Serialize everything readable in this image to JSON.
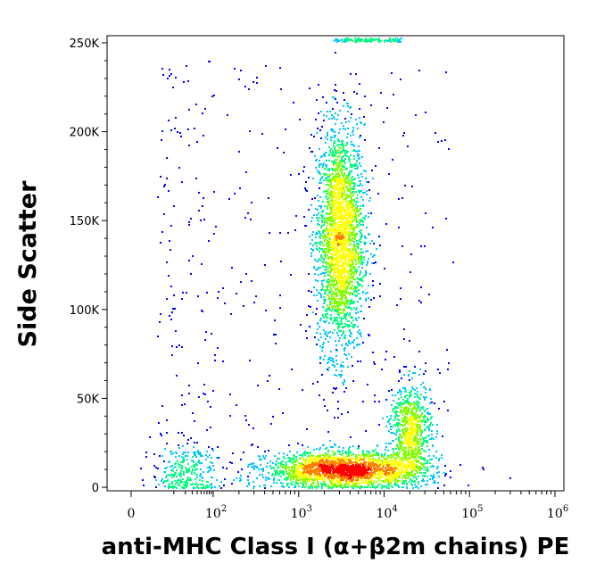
{
  "chart_data": {
    "type": "scatter",
    "subtype": "flow-cytometry density dot plot",
    "title": "",
    "xlabel": "anti-MHC Class I (α+β2m chains) PE",
    "ylabel": "Side Scatter",
    "x_scale": "biexponential (log with linear region near 0)",
    "x_ticks": [
      {
        "value": 0,
        "label": "0"
      },
      {
        "value": 100,
        "base": "10",
        "exp": "2"
      },
      {
        "value": 1000,
        "base": "10",
        "exp": "3"
      },
      {
        "value": 10000,
        "base": "10",
        "exp": "4"
      },
      {
        "value": 100000,
        "base": "10",
        "exp": "5"
      },
      {
        "value": 1000000,
        "base": "10",
        "exp": "6"
      }
    ],
    "y_ticks": [
      {
        "value": 0,
        "label": "0"
      },
      {
        "value": 50000,
        "label": "50K"
      },
      {
        "value": 100000,
        "label": "100K"
      },
      {
        "value": 150000,
        "label": "150K"
      },
      {
        "value": 200000,
        "label": "200K"
      },
      {
        "value": 250000,
        "label": "250K"
      }
    ],
    "ylim": [
      0,
      262144
    ],
    "grid": false,
    "color_map": [
      "#0000ff",
      "#00c8ff",
      "#00ff80",
      "#80ff00",
      "#ffff00",
      "#ff8000",
      "#ff0000"
    ],
    "populations": [
      {
        "x_center": 3000,
        "y_center": 140000,
        "x_spread_decades": 0.14,
        "y_sd": 32000,
        "points": 2600
      },
      {
        "x_center": 3500,
        "y_center": 10000,
        "x_spread_decades": 0.45,
        "y_sd": 5000,
        "points": 2400
      },
      {
        "x_center": 20000,
        "y_center": 32000,
        "x_spread_decades": 0.12,
        "y_sd": 14000,
        "points": 800
      },
      {
        "x_center": 20,
        "y_center": 8000,
        "x_spread_decades": 0.5,
        "y_sd": 9000,
        "points": 300
      }
    ]
  }
}
